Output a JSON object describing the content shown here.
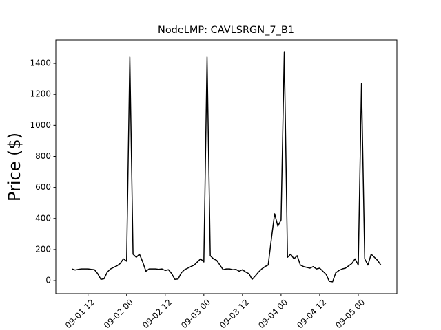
{
  "chart_data": {
    "type": "line",
    "title": "NodeLMP: CAVLSRGN_7_B1",
    "ylabel": "Price ($)",
    "color": "#000000",
    "x": [
      "09-01 07",
      "09-01 08",
      "09-01 09",
      "09-01 10",
      "09-01 11",
      "09-01 12",
      "09-01 13",
      "09-01 14",
      "09-01 15",
      "09-01 16",
      "09-01 17",
      "09-01 18",
      "09-01 19",
      "09-01 20",
      "09-01 21",
      "09-01 22",
      "09-01 23",
      "09-02 00",
      "09-02 01",
      "09-02 02",
      "09-02 03",
      "09-02 04",
      "09-02 05",
      "09-02 06",
      "09-02 07",
      "09-02 08",
      "09-02 09",
      "09-02 10",
      "09-02 11",
      "09-02 12",
      "09-02 13",
      "09-02 14",
      "09-02 15",
      "09-02 16",
      "09-02 17",
      "09-02 18",
      "09-02 19",
      "09-02 20",
      "09-02 21",
      "09-02 22",
      "09-02 23",
      "09-03 00",
      "09-03 01",
      "09-03 02",
      "09-03 03",
      "09-03 04",
      "09-03 05",
      "09-03 06",
      "09-03 07",
      "09-03 08",
      "09-03 09",
      "09-03 10",
      "09-03 11",
      "09-03 12",
      "09-03 13",
      "09-03 14",
      "09-03 15",
      "09-03 16",
      "09-03 17",
      "09-03 18",
      "09-03 19",
      "09-03 20",
      "09-03 21",
      "09-03 22",
      "09-03 23",
      "09-04 00",
      "09-04 01",
      "09-04 02",
      "09-04 03",
      "09-04 04",
      "09-04 05",
      "09-04 06",
      "09-04 07",
      "09-04 08",
      "09-04 09",
      "09-04 10",
      "09-04 11",
      "09-04 12",
      "09-04 13",
      "09-04 14",
      "09-04 15",
      "09-04 16",
      "09-04 17",
      "09-04 18",
      "09-04 19",
      "09-04 20",
      "09-04 21",
      "09-04 22",
      "09-04 23",
      "09-05 00",
      "09-05 01",
      "09-05 02",
      "09-05 03",
      "09-05 04",
      "09-05 05",
      "09-05 06",
      "09-05 07"
    ],
    "values": [
      75,
      68,
      72,
      75,
      75,
      75,
      72,
      70,
      45,
      8,
      12,
      55,
      75,
      85,
      95,
      110,
      140,
      125,
      1440,
      170,
      150,
      170,
      120,
      60,
      75,
      75,
      75,
      72,
      75,
      65,
      70,
      45,
      8,
      10,
      50,
      70,
      80,
      90,
      100,
      120,
      140,
      120,
      1440,
      160,
      140,
      130,
      100,
      70,
      75,
      75,
      70,
      72,
      60,
      70,
      55,
      45,
      8,
      30,
      55,
      75,
      90,
      100,
      270,
      430,
      350,
      390,
      1475,
      150,
      170,
      140,
      160,
      100,
      90,
      85,
      80,
      90,
      75,
      80,
      60,
      40,
      -5,
      -8,
      50,
      65,
      75,
      80,
      95,
      110,
      140,
      100,
      1270,
      140,
      100,
      170,
      150,
      130,
      100
    ],
    "xlim": [
      "09-01 02",
      "09-05 12"
    ],
    "xticks": [
      "09-01 12",
      "09-02 00",
      "09-02 12",
      "09-03 00",
      "09-03 12",
      "09-04 00",
      "09-04 12",
      "09-05 00"
    ],
    "ylim": [
      -84,
      1551
    ],
    "yticks": [
      0,
      200,
      400,
      600,
      800,
      1000,
      1200,
      1400
    ]
  }
}
